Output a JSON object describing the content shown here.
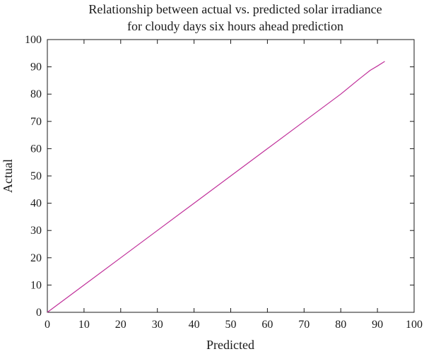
{
  "chart_data": {
    "type": "line",
    "title_lines": [
      "Relationship between actual vs. predicted solar irradiance",
      "for cloudy days six hours ahead prediction"
    ],
    "xlabel": "Predicted",
    "ylabel": "Actual",
    "xlim": [
      0,
      100
    ],
    "ylim": [
      0,
      100
    ],
    "x_ticks": [
      0,
      10,
      20,
      30,
      40,
      50,
      60,
      70,
      80,
      90,
      100
    ],
    "y_ticks": [
      0,
      10,
      20,
      30,
      40,
      50,
      60,
      70,
      80,
      90,
      100
    ],
    "grid": false,
    "series": [
      {
        "color": "#c0309a",
        "x": [
          0,
          10,
          20,
          30,
          40,
          50,
          60,
          70,
          80,
          85,
          88,
          90,
          92
        ],
        "y": [
          0,
          10,
          20,
          30,
          40,
          50,
          60,
          70,
          80,
          85.5,
          88.7,
          90.3,
          92
        ]
      }
    ]
  }
}
